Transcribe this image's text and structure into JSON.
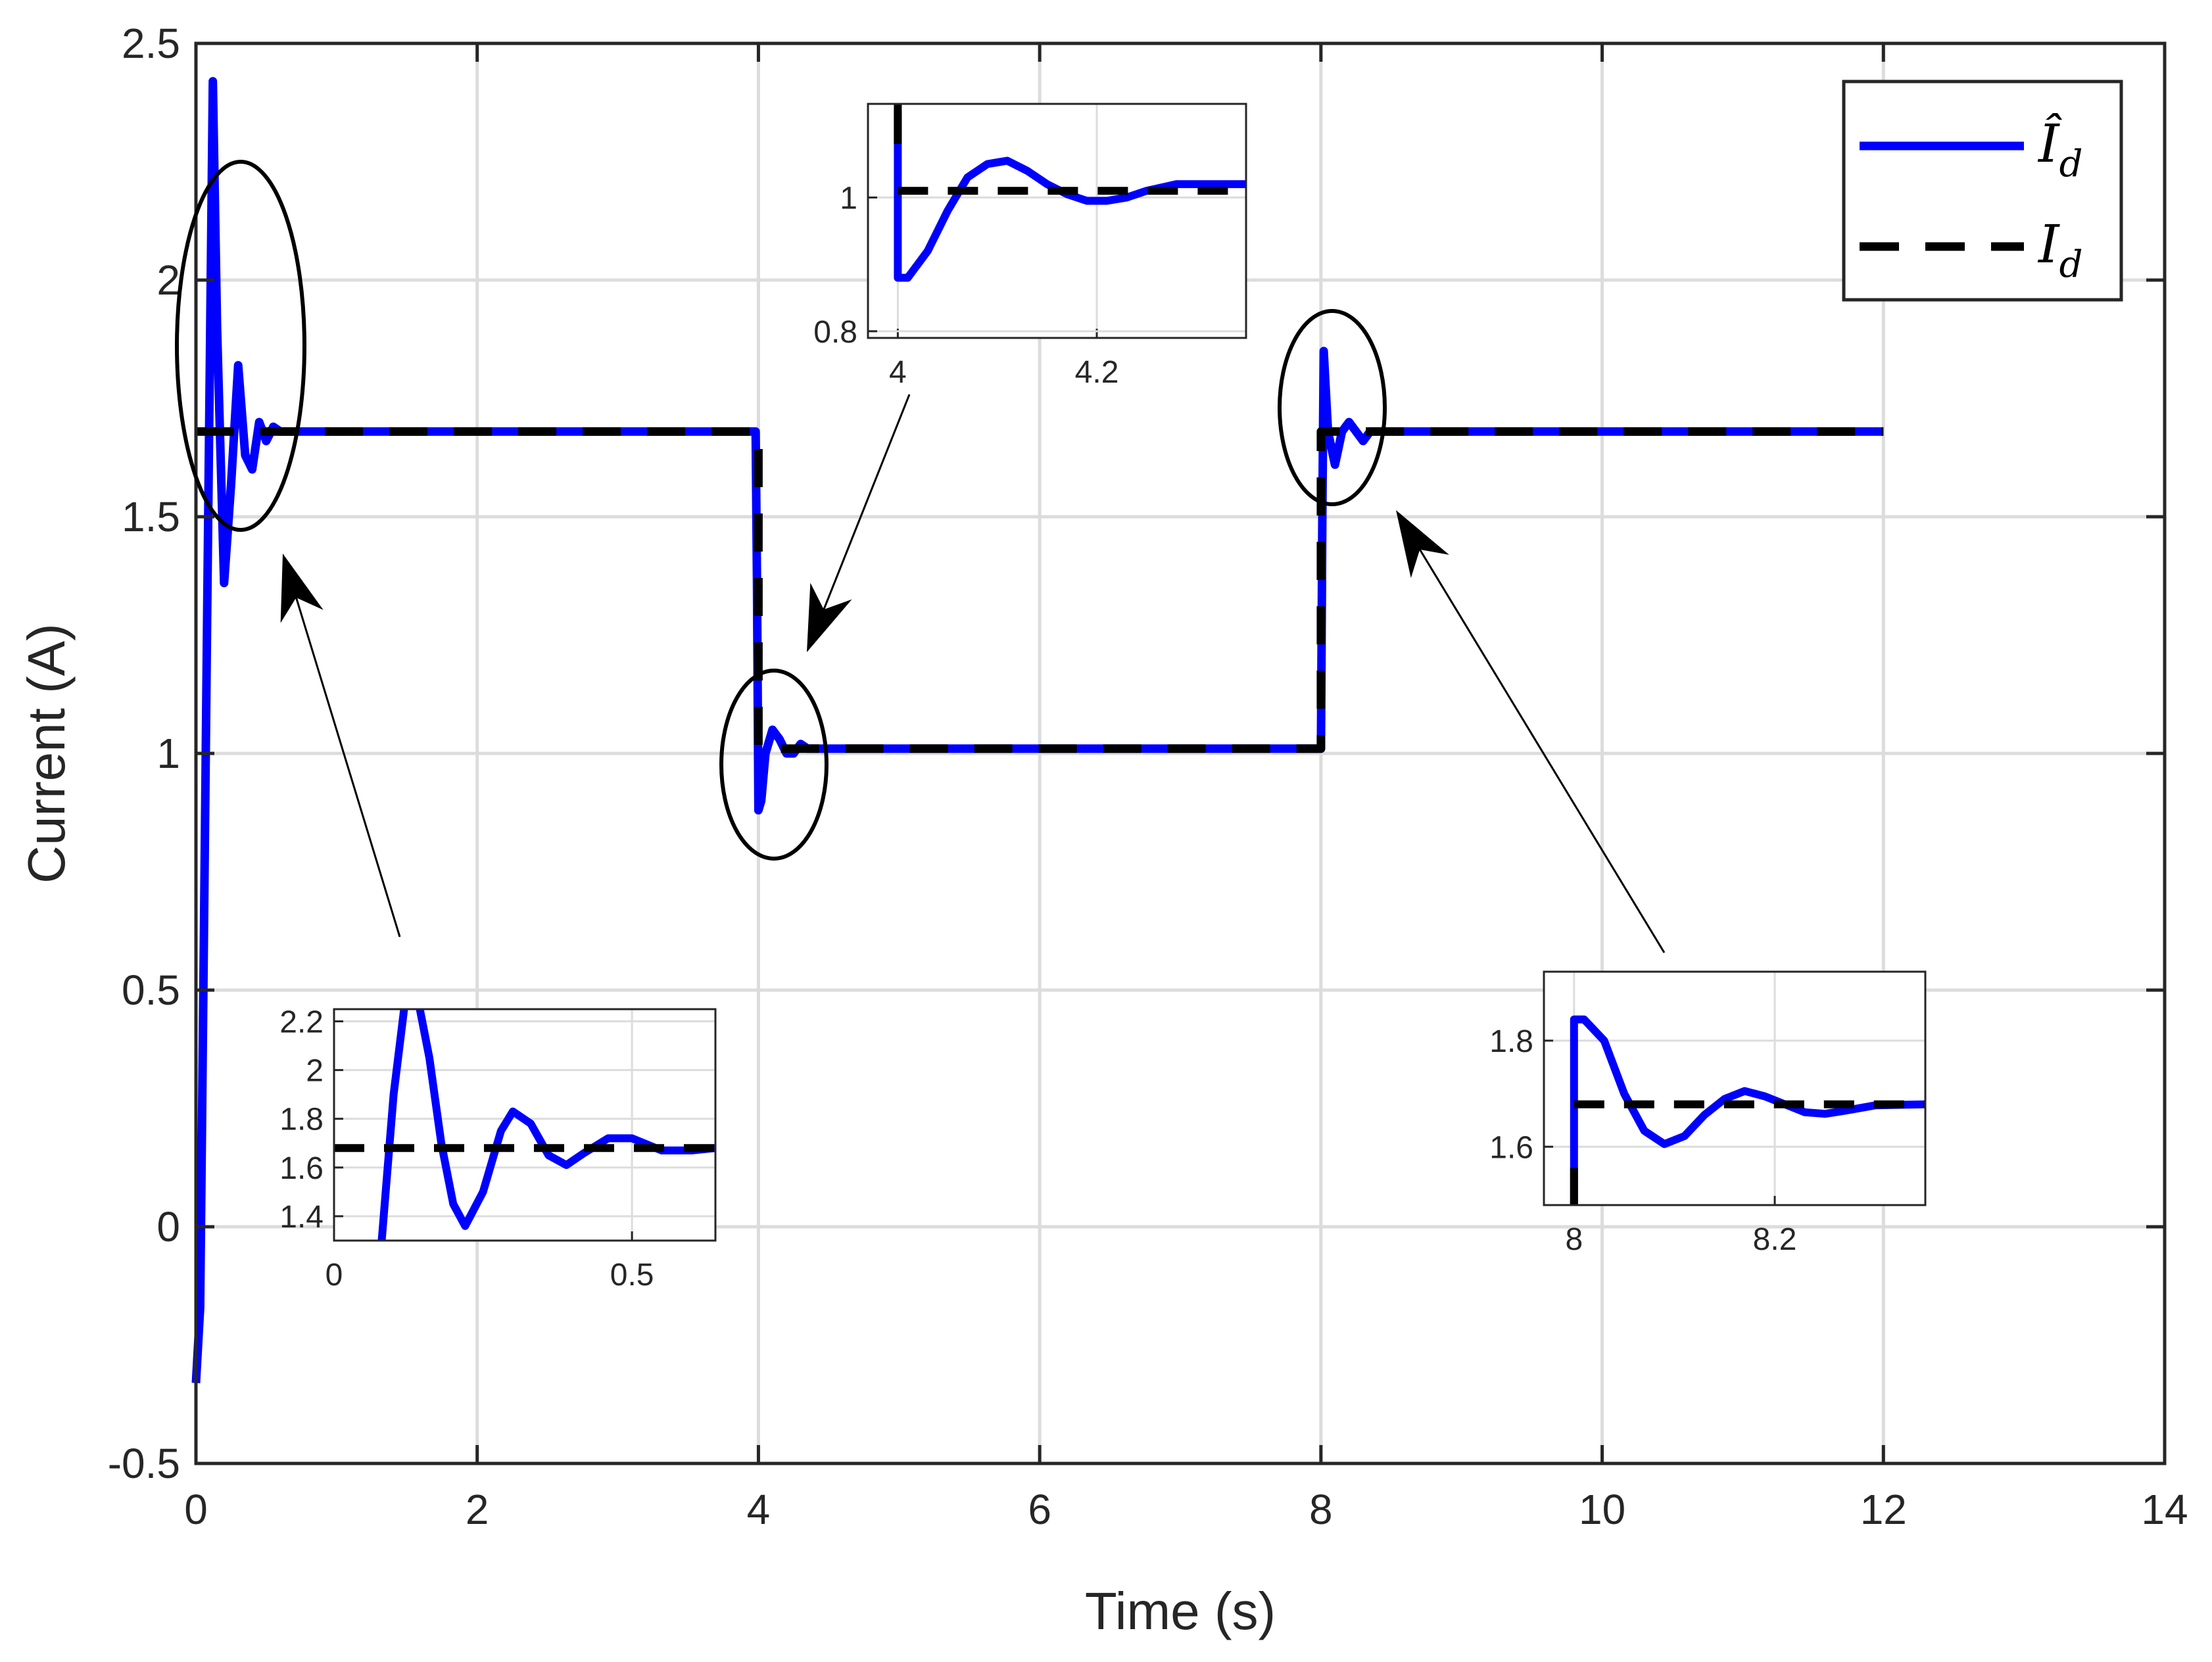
{
  "chart_data": {
    "type": "line",
    "xlabel": "Time (s)",
    "ylabel": "Current (A)",
    "xlim": [
      0,
      14
    ],
    "ylim": [
      -0.5,
      2.5
    ],
    "xticks": [
      "0",
      "2",
      "4",
      "6",
      "8",
      "10",
      "12",
      "14"
    ],
    "yticks": [
      "-0.5",
      "0",
      "0.5",
      "1",
      "1.5",
      "2",
      "2.5"
    ],
    "grid": true,
    "legend_position": "top-right",
    "legend": [
      {
        "label": "Î",
        "sub": "d",
        "color": "#0000ff",
        "style": "solid"
      },
      {
        "label": "I",
        "sub": "d",
        "color": "#000000",
        "style": "dashed"
      }
    ],
    "series": [
      {
        "style": "solid",
        "color": "#0000ff",
        "x": [
          0,
          0.03,
          0.08,
          0.12,
          0.15,
          0.2,
          0.25,
          0.3,
          0.35,
          0.4,
          0.45,
          0.5,
          0.55,
          0.6,
          0.7,
          3.98,
          3.99,
          4.0,
          4.02,
          4.05,
          4.1,
          4.15,
          4.2,
          4.25,
          4.3,
          4.35,
          8.0,
          8.01,
          8.02,
          8.05,
          8.1,
          8.15,
          8.2,
          8.25,
          8.3,
          8.35,
          12.0
        ],
        "y": [
          -0.33,
          -0.17,
          1.3,
          2.42,
          1.9,
          1.36,
          1.57,
          1.82,
          1.63,
          1.6,
          1.7,
          1.66,
          1.69,
          1.68,
          1.68,
          1.68,
          1.35,
          0.88,
          0.9,
          1.0,
          1.05,
          1.03,
          1.0,
          1.0,
          1.02,
          1.01,
          1.01,
          1.5,
          1.85,
          1.68,
          1.61,
          1.68,
          1.7,
          1.68,
          1.66,
          1.68,
          1.68
        ]
      },
      {
        "style": "dashed",
        "color": "#000000",
        "x": [
          0,
          4.0,
          4.0,
          8.0,
          8.0,
          12.0
        ],
        "y": [
          1.68,
          1.68,
          1.01,
          1.01,
          1.68,
          1.68
        ]
      }
    ],
    "insets": [
      {
        "name": "inset-start",
        "xlim": [
          0,
          0.64
        ],
        "ylim": [
          1.3,
          2.25
        ],
        "xticks": [
          0,
          0.5
        ],
        "xtick_labels": [
          "0",
          "0.5"
        ],
        "yticks": [
          1.4,
          1.6,
          1.8,
          2.0,
          2.2
        ],
        "ytick_labels": [
          "1.4",
          "1.6",
          "1.8",
          "2",
          "2.2"
        ],
        "solid": {
          "x": [
            0.08,
            0.1,
            0.12,
            0.14,
            0.16,
            0.18,
            0.2,
            0.22,
            0.25,
            0.28,
            0.3,
            0.33,
            0.36,
            0.39,
            0.42,
            0.46,
            0.5,
            0.55,
            0.6,
            0.64
          ],
          "y": [
            1.3,
            1.9,
            2.3,
            2.3,
            2.05,
            1.7,
            1.45,
            1.36,
            1.5,
            1.75,
            1.83,
            1.78,
            1.65,
            1.61,
            1.66,
            1.72,
            1.72,
            1.67,
            1.67,
            1.68
          ]
        },
        "dashed": {
          "x": [
            0,
            0.64
          ],
          "y": [
            1.68,
            1.68
          ]
        }
      },
      {
        "name": "inset-drop",
        "xlim": [
          3.97,
          4.35
        ],
        "ylim": [
          0.79,
          1.14
        ],
        "xticks": [
          4.0,
          4.2
        ],
        "xtick_labels": [
          "4",
          "4.2"
        ],
        "yticks": [
          0.8,
          1.0
        ],
        "ytick_labels": [
          "0.8",
          "1"
        ],
        "solid": {
          "x": [
            4.0,
            4.0,
            4.01,
            4.03,
            4.05,
            4.07,
            4.09,
            4.11,
            4.13,
            4.15,
            4.17,
            4.19,
            4.21,
            4.23,
            4.25,
            4.28,
            4.31,
            4.35
          ],
          "y": [
            1.13,
            0.88,
            0.88,
            0.92,
            0.98,
            1.03,
            1.05,
            1.055,
            1.04,
            1.02,
            1.005,
            0.995,
            0.995,
            1.0,
            1.01,
            1.02,
            1.02,
            1.02
          ],
          "dashed_vertical": [
            1.14,
            1.08
          ]
        },
        "dashed": {
          "x": [
            4.0,
            4.35
          ],
          "y": [
            1.01,
            1.01
          ]
        }
      },
      {
        "name": "inset-rise",
        "xlim": [
          7.97,
          8.35
        ],
        "ylim": [
          1.49,
          1.93
        ],
        "xticks": [
          8.0,
          8.2
        ],
        "xtick_labels": [
          "8",
          "8.2"
        ],
        "yticks": [
          1.6,
          1.8
        ],
        "ytick_labels": [
          "1.6",
          "1.8"
        ],
        "solid": {
          "x": [
            8.0,
            8.0,
            8.01,
            8.03,
            8.05,
            8.07,
            8.09,
            8.11,
            8.13,
            8.15,
            8.17,
            8.19,
            8.21,
            8.23,
            8.25,
            8.27,
            8.3,
            8.35
          ],
          "y": [
            1.49,
            1.84,
            1.84,
            1.8,
            1.7,
            1.63,
            1.605,
            1.62,
            1.66,
            1.69,
            1.705,
            1.695,
            1.68,
            1.665,
            1.662,
            1.668,
            1.678,
            1.68
          ],
          "dashed_vertical": [
            1.49,
            1.56
          ]
        },
        "dashed": {
          "x": [
            8.0,
            8.35
          ],
          "y": [
            1.68,
            1.68
          ]
        }
      }
    ],
    "annotations": [
      {
        "type": "ellipse",
        "target_x": 0.3,
        "target_y": 1.87
      },
      {
        "type": "ellipse",
        "target_x": 4.07,
        "target_y": 0.98
      },
      {
        "type": "ellipse",
        "target_x": 8.05,
        "target_y": 1.72
      }
    ]
  }
}
